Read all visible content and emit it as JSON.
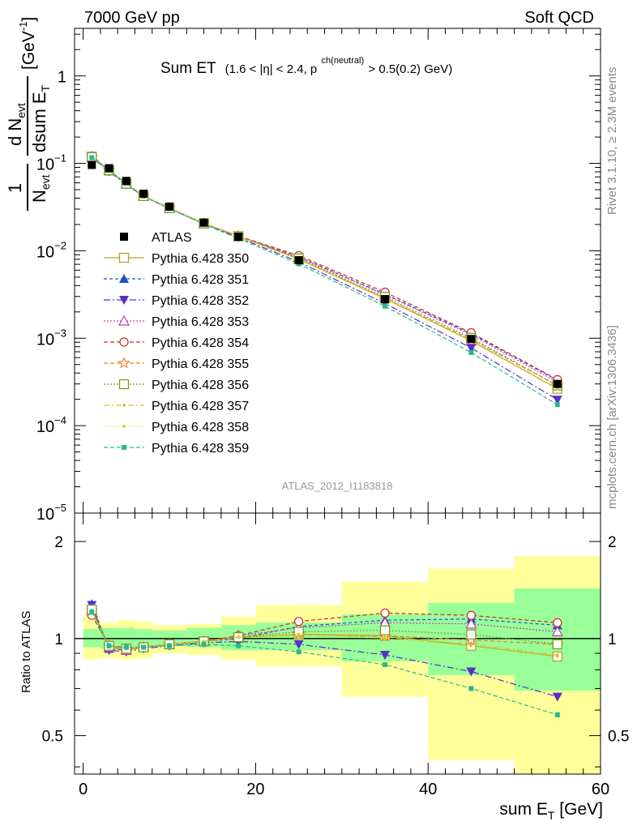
{
  "header": {
    "left": "7000 GeV pp",
    "right": "Soft QCD"
  },
  "title": {
    "main": "Sum ET",
    "cond_a": "(1.6 < |η| < 2.4, p",
    "cond_sup": "ch(neutral)",
    "cond_b": " > 0.5(0.2) GeV)"
  },
  "side_labels": {
    "rivet": "Rivet 3.1.10, ≥ 2.3M events",
    "mcplots": "mcplots.cern.ch [arXiv:1306.3436]"
  },
  "analysis_id": "ATLAS_2012_I1183818",
  "ylabel_top": {
    "frac_num": "1",
    "frac_den": "N",
    "frac_den_sub": "evt",
    "deriv_num": "d N",
    "deriv_num_sub": "evt",
    "deriv_den": "dsum E",
    "deriv_den_sub": "T",
    "unit": "[GeV",
    "unit_sup": "-1",
    "unit_end": "]"
  },
  "ylabel_ratio": "Ratio to ATLAS",
  "xlabel": {
    "main": "sum E",
    "sub": "T",
    "unit": " [GeV]"
  },
  "upper_ticks": [
    {
      "value": 1e-05,
      "base": "10",
      "exp": "−5"
    },
    {
      "value": 0.0001,
      "base": "10",
      "exp": "−4"
    },
    {
      "value": 0.001,
      "base": "10",
      "exp": "−3"
    },
    {
      "value": 0.01,
      "base": "10",
      "exp": "−2"
    },
    {
      "value": 0.1,
      "base": "10",
      "exp": "−1"
    },
    {
      "value": 1,
      "base": "1",
      "exp": ""
    }
  ],
  "ratio_ticks": [
    {
      "value": 0.5,
      "label": "0.5"
    },
    {
      "value": 1,
      "label": "1"
    },
    {
      "value": 2,
      "label": "2"
    }
  ],
  "x_ticks": [
    {
      "value": 0,
      "label": "0"
    },
    {
      "value": 20,
      "label": "20"
    },
    {
      "value": 40,
      "label": "40"
    },
    {
      "value": 60,
      "label": "60"
    }
  ],
  "chart_data": {
    "type": "scatter",
    "x_scale": "linear",
    "y_scale_upper": "log",
    "y_scale_ratio": "log",
    "xlim": [
      -1,
      60
    ],
    "ylim_upper": [
      1e-05,
      3.5
    ],
    "ylim_ratio": [
      0.38,
      2.45
    ],
    "x": [
      1,
      3,
      5,
      7,
      10,
      14,
      18,
      25,
      35,
      45,
      55
    ],
    "bin_edges": [
      0,
      2,
      4,
      6,
      8,
      12,
      16,
      20,
      30,
      40,
      50,
      60
    ],
    "data": {
      "name": "ATLAS",
      "values": [
        0.096,
        0.088,
        0.063,
        0.045,
        0.032,
        0.021,
        0.0145,
        0.0078,
        0.0028,
        0.00098,
        0.0003
      ]
    },
    "bands": {
      "inner": [
        [
          0.94,
          1.07
        ],
        [
          0.93,
          1.08
        ],
        [
          0.93,
          1.08
        ],
        [
          0.94,
          1.07
        ],
        [
          0.95,
          1.06
        ],
        [
          0.94,
          1.08
        ],
        [
          0.92,
          1.1
        ],
        [
          0.92,
          1.12
        ],
        [
          0.85,
          1.19
        ],
        [
          0.77,
          1.29
        ],
        [
          0.69,
          1.43
        ]
      ],
      "outer": [
        [
          0.86,
          1.18
        ],
        [
          0.87,
          1.12
        ],
        [
          0.86,
          1.14
        ],
        [
          0.87,
          1.13
        ],
        [
          0.9,
          1.1
        ],
        [
          0.89,
          1.11
        ],
        [
          0.86,
          1.17
        ],
        [
          0.82,
          1.27
        ],
        [
          0.66,
          1.5
        ],
        [
          0.42,
          1.65
        ],
        [
          0.37,
          1.8
        ]
      ]
    },
    "series": [
      {
        "name": "Pythia 6.428 350",
        "color": "#b5a52b",
        "dash": "solid",
        "marker": "open-square",
        "ratio": [
          1.22,
          0.94,
          0.93,
          0.94,
          0.96,
          0.98,
          1.01,
          1.03,
          1.02,
          0.95,
          0.88
        ]
      },
      {
        "name": "Pythia 6.428 351",
        "color": "#1f4fcf",
        "dash": "4,3",
        "marker": "triangle-up",
        "ratio": [
          1.28,
          0.93,
          0.92,
          0.94,
          0.96,
          0.98,
          1.0,
          1.09,
          1.14,
          1.15,
          1.1
        ]
      },
      {
        "name": "Pythia 6.428 352",
        "color": "#5a2fc6",
        "dash": "8,3,2,3",
        "marker": "triangle-down",
        "ratio": [
          1.27,
          0.92,
          0.91,
          0.93,
          0.95,
          0.97,
          0.98,
          0.96,
          0.89,
          0.79,
          0.66
        ]
      },
      {
        "name": "Pythia 6.428 353",
        "color": "#c040a6",
        "dash": "2,2",
        "marker": "open-triangle",
        "ratio": [
          1.23,
          0.94,
          0.92,
          0.94,
          0.96,
          0.98,
          1.02,
          1.08,
          1.12,
          1.11,
          1.05
        ]
      },
      {
        "name": "Pythia 6.428 354",
        "color": "#d42a2a",
        "dash": "5,3",
        "marker": "open-circle",
        "ratio": [
          1.18,
          0.95,
          0.93,
          0.94,
          0.96,
          0.98,
          1.02,
          1.13,
          1.2,
          1.18,
          1.12
        ]
      },
      {
        "name": "Pythia 6.428 355",
        "color": "#ee7c2c",
        "dash": "5,3",
        "marker": "open-star",
        "ratio": [
          1.22,
          0.95,
          0.93,
          0.94,
          0.96,
          0.98,
          1.01,
          1.03,
          1.02,
          0.99,
          0.96
        ]
      },
      {
        "name": "Pythia 6.428 356",
        "color": "#7f9a24",
        "dash": "2,2",
        "marker": "open-square",
        "ratio": [
          1.23,
          0.95,
          0.93,
          0.94,
          0.96,
          0.98,
          1.01,
          1.05,
          1.06,
          1.03,
          0.96
        ]
      },
      {
        "name": "Pythia 6.428 357",
        "color": "#e0b81f",
        "dash": "7,3,2,3",
        "marker": "small-dot",
        "ratio": [
          1.22,
          0.94,
          0.93,
          0.94,
          0.96,
          0.98,
          1.01,
          1.03,
          1.01,
          0.96,
          0.89
        ]
      },
      {
        "name": "Pythia 6.428 358",
        "color": "#c3d22a",
        "dash": "1,2",
        "marker": "small-dot",
        "ratio": [
          1.22,
          0.94,
          0.93,
          0.94,
          0.96,
          0.98,
          1.01,
          1.02,
          1.0,
          0.95,
          0.88
        ]
      },
      {
        "name": "Pythia 6.428 359",
        "color": "#22bb8e",
        "dash": "5,3",
        "marker": "filled-square",
        "ratio": [
          1.21,
          0.95,
          0.94,
          0.94,
          0.95,
          0.96,
          0.95,
          0.91,
          0.83,
          0.7,
          0.58
        ]
      }
    ]
  }
}
